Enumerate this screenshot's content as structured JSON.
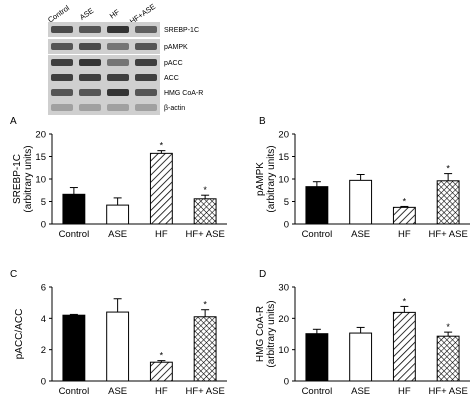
{
  "blot": {
    "lanes": [
      "Control",
      "ASE",
      "HF",
      "HF+ASE"
    ],
    "bands": [
      {
        "label": "SREBP-1C",
        "intensity": [
          0.75,
          0.7,
          0.85,
          0.65
        ]
      },
      {
        "label": "pAMPK",
        "intensity": [
          0.7,
          0.75,
          0.55,
          0.7
        ]
      },
      {
        "label": "pACC",
        "intensity": [
          0.8,
          0.85,
          0.55,
          0.8
        ]
      },
      {
        "label": "ACC",
        "intensity": [
          0.8,
          0.8,
          0.8,
          0.8
        ]
      },
      {
        "label": "HMG CoA-R",
        "intensity": [
          0.7,
          0.7,
          0.85,
          0.7
        ]
      },
      {
        "label": "β-actin",
        "intensity": [
          0.35,
          0.35,
          0.35,
          0.35
        ]
      }
    ]
  },
  "chart_data": [
    {
      "panel": "A",
      "type": "bar",
      "ylabel": "SREBP-1C\n(arbitrary units)",
      "categories": [
        "Control",
        "ASE",
        "HF",
        "HF+ ASE"
      ],
      "values": [
        6.6,
        4.2,
        15.7,
        5.6
      ],
      "errors": [
        1.5,
        1.6,
        0.6,
        0.8
      ],
      "significance": [
        "",
        "",
        "*",
        "*"
      ],
      "fills": [
        "solid",
        "open",
        "diagonal",
        "crosshatch"
      ],
      "ylim": [
        0,
        20
      ],
      "yticks": [
        0,
        5,
        10,
        15,
        20
      ]
    },
    {
      "panel": "B",
      "type": "bar",
      "ylabel": "pAMPK\n(arbitrary units)",
      "categories": [
        "Control",
        "ASE",
        "HF",
        "HF+ ASE"
      ],
      "values": [
        8.3,
        9.7,
        3.7,
        9.6
      ],
      "errors": [
        1.1,
        1.3,
        0.2,
        1.6
      ],
      "significance": [
        "",
        "",
        "*",
        "*"
      ],
      "fills": [
        "solid",
        "open",
        "diagonal",
        "crosshatch"
      ],
      "ylim": [
        0,
        20
      ],
      "yticks": [
        0,
        5,
        10,
        15,
        20
      ]
    },
    {
      "panel": "C",
      "type": "bar",
      "ylabel": "pACC/ACC",
      "categories": [
        "Control",
        "ASE",
        "HF",
        "HF+ ASE"
      ],
      "values": [
        4.2,
        4.4,
        1.2,
        4.1
      ],
      "errors": [
        0.05,
        0.85,
        0.1,
        0.45
      ],
      "significance": [
        "",
        "",
        "*",
        "*"
      ],
      "fills": [
        "solid",
        "open",
        "diagonal",
        "crosshatch"
      ],
      "ylim": [
        0,
        6
      ],
      "yticks": [
        0,
        2,
        4,
        6
      ]
    },
    {
      "panel": "D",
      "type": "bar",
      "ylabel": "HMG CoA-R\n(arbitrary units)",
      "categories": [
        "Control",
        "ASE",
        "HF",
        "HF+ ASE"
      ],
      "values": [
        15.1,
        15.3,
        21.9,
        14.3
      ],
      "errors": [
        1.4,
        1.8,
        1.9,
        1.3
      ],
      "significance": [
        "",
        "",
        "*",
        "*"
      ],
      "fills": [
        "solid",
        "open",
        "diagonal",
        "crosshatch"
      ],
      "ylim": [
        0,
        30
      ],
      "yticks": [
        0,
        10,
        20,
        30
      ]
    }
  ]
}
